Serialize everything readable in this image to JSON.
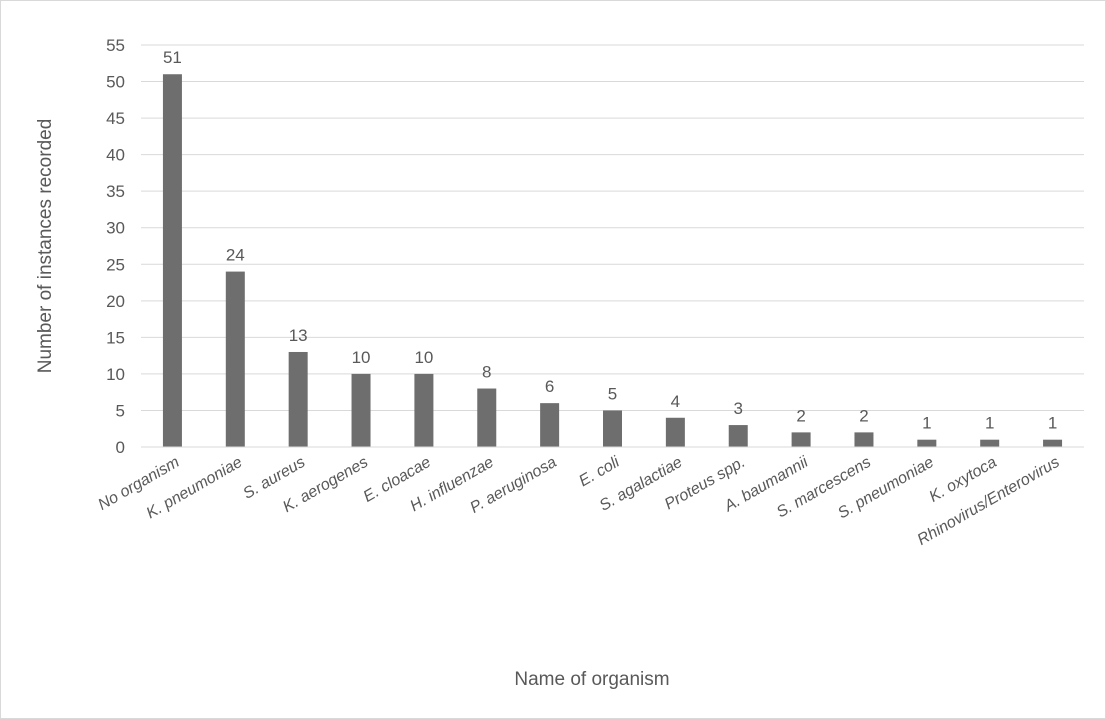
{
  "chart_data": {
    "type": "bar",
    "title": "",
    "xlabel": "Name of organism",
    "ylabel": "Number of instances recorded",
    "ylim": [
      0,
      55
    ],
    "yticks": [
      0,
      5,
      10,
      15,
      20,
      25,
      30,
      35,
      40,
      45,
      50,
      55
    ],
    "grid": true,
    "legend": "none",
    "bar_color": "#6e6e6e",
    "categories": [
      "No organism",
      "K. pneumoniae",
      "S. aureus",
      "K. aerogenes",
      "E. cloacae",
      "H. influenzae",
      "P. aeruginosa",
      "E. coli",
      "S. agalactiae",
      "Proteus spp.",
      "A. baumannii",
      "S. marcescens",
      "S. pneumoniae",
      "K. oxytoca",
      "Rhinovirus/Enterovirus"
    ],
    "values": [
      51,
      24,
      13,
      10,
      10,
      8,
      6,
      5,
      4,
      3,
      2,
      2,
      1,
      1,
      1
    ]
  }
}
